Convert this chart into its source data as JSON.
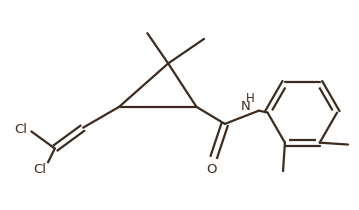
{
  "line_color": "#3d2b1f",
  "bg_color": "#ffffff",
  "line_width": 1.6,
  "font_size_label": 9.5,
  "font_size_H": 8.5,
  "figsize": [
    3.59,
    2.1
  ],
  "dpi": 100,
  "xlim": [
    0,
    9.5
  ],
  "ylim": [
    0,
    5.5
  ]
}
